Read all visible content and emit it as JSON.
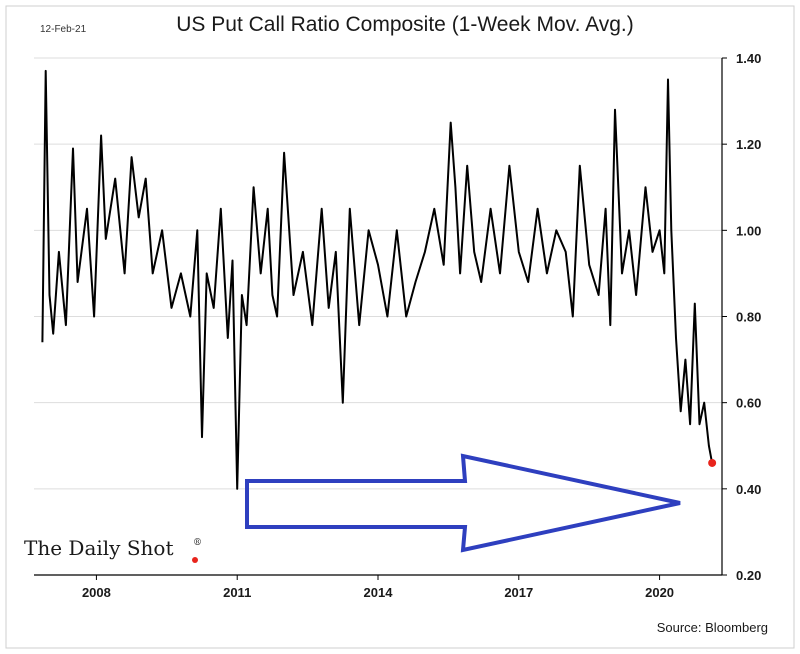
{
  "date_label": "12-Feb-21",
  "source": "Source: Bloomberg",
  "brand": {
    "text": "The Daily Shot",
    "mark": "®"
  },
  "colors": {
    "line": "#000000",
    "marker": "#e8241c",
    "arrow": "#2e3fbf",
    "grid": "#dddddd"
  },
  "chart_data": {
    "type": "line",
    "title": "US Put Call Ratio Composite (1-Week Mov. Avg.)",
    "xlabel": "",
    "ylabel": "",
    "xlim": [
      2006.67,
      2021.33
    ],
    "ylim": [
      0.2,
      1.4
    ],
    "x_ticks": [
      2008,
      2011,
      2014,
      2017,
      2020
    ],
    "y_ticks": [
      0.2,
      0.4,
      0.6,
      0.8,
      1.0,
      1.2,
      1.4
    ],
    "y_tick_labels": [
      "0.20",
      "0.40",
      "0.60",
      "0.80",
      "1.00",
      "1.20",
      "1.40"
    ],
    "grid": "horizontal",
    "series": [
      {
        "name": "",
        "x": [
          2006.85,
          2006.92,
          2007.0,
          2007.08,
          2007.2,
          2007.35,
          2007.5,
          2007.6,
          2007.8,
          2007.95,
          2008.1,
          2008.2,
          2008.4,
          2008.6,
          2008.75,
          2008.9,
          2009.05,
          2009.2,
          2009.4,
          2009.6,
          2009.8,
          2010.0,
          2010.15,
          2010.25,
          2010.35,
          2010.5,
          2010.65,
          2010.8,
          2010.9,
          2011.0,
          2011.1,
          2011.2,
          2011.35,
          2011.5,
          2011.65,
          2011.75,
          2011.85,
          2012.0,
          2012.2,
          2012.4,
          2012.6,
          2012.8,
          2012.95,
          2013.1,
          2013.25,
          2013.4,
          2013.6,
          2013.8,
          2014.0,
          2014.2,
          2014.4,
          2014.6,
          2014.8,
          2015.0,
          2015.2,
          2015.4,
          2015.55,
          2015.65,
          2015.75,
          2015.9,
          2016.05,
          2016.2,
          2016.4,
          2016.6,
          2016.8,
          2017.0,
          2017.2,
          2017.4,
          2017.6,
          2017.8,
          2018.0,
          2018.15,
          2018.3,
          2018.5,
          2018.7,
          2018.85,
          2018.95,
          2019.05,
          2019.2,
          2019.35,
          2019.5,
          2019.7,
          2019.85,
          2020.0,
          2020.1,
          2020.18,
          2020.25,
          2020.35,
          2020.45,
          2020.55,
          2020.65,
          2020.75,
          2020.85,
          2020.95,
          2021.05,
          2021.12
        ],
        "y": [
          0.74,
          1.37,
          0.85,
          0.76,
          0.95,
          0.78,
          1.19,
          0.88,
          1.05,
          0.8,
          1.22,
          0.98,
          1.12,
          0.9,
          1.17,
          1.03,
          1.12,
          0.9,
          1.0,
          0.82,
          0.9,
          0.8,
          1.0,
          0.52,
          0.9,
          0.82,
          1.05,
          0.75,
          0.93,
          0.4,
          0.85,
          0.78,
          1.1,
          0.9,
          1.05,
          0.85,
          0.8,
          1.18,
          0.85,
          0.95,
          0.78,
          1.05,
          0.82,
          0.95,
          0.6,
          1.05,
          0.78,
          1.0,
          0.92,
          0.8,
          1.0,
          0.8,
          0.88,
          0.95,
          1.05,
          0.92,
          1.25,
          1.1,
          0.9,
          1.15,
          0.95,
          0.88,
          1.05,
          0.9,
          1.15,
          0.95,
          0.88,
          1.05,
          0.9,
          1.0,
          0.95,
          0.8,
          1.15,
          0.92,
          0.85,
          1.05,
          0.78,
          1.28,
          0.9,
          1.0,
          0.85,
          1.1,
          0.95,
          1.0,
          0.9,
          1.35,
          1.0,
          0.75,
          0.58,
          0.7,
          0.55,
          0.83,
          0.55,
          0.6,
          0.5,
          0.46
        ]
      }
    ],
    "last_point": {
      "x": 2021.12,
      "y": 0.46
    }
  }
}
